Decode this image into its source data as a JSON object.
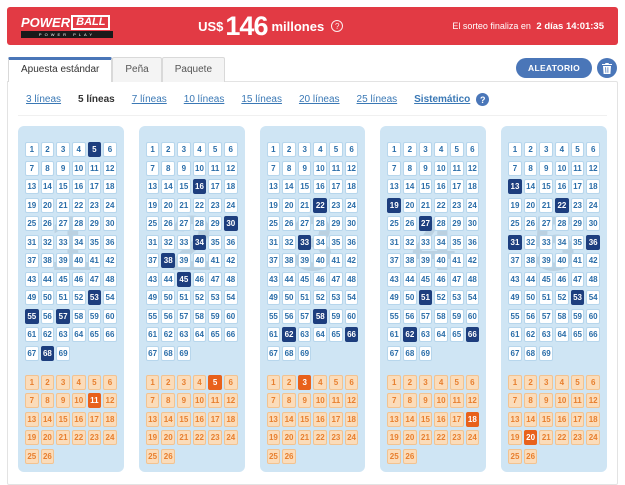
{
  "header": {
    "logo": {
      "power": "POWER",
      "ball": "BALL",
      "powerplay": "POWER PLAY"
    },
    "jackpot": {
      "currency": "US$",
      "amount": "146",
      "suffix": "millones",
      "help_icon": "question-circle-icon"
    },
    "countdown": {
      "label": "El sorteo finaliza en",
      "value": "2 días 14:01:35"
    }
  },
  "tabs": [
    {
      "label": "Apuesta estándar",
      "active": true
    },
    {
      "label": "Peña",
      "active": false
    },
    {
      "label": "Paquete",
      "active": false
    }
  ],
  "actions": {
    "random_label": "ALEATORIO",
    "clear_icon": "trash-icon"
  },
  "line_options": [
    {
      "label": "3 líneas",
      "active": false
    },
    {
      "label": "5 líneas",
      "active": true
    },
    {
      "label": "7 líneas",
      "active": false
    },
    {
      "label": "10 líneas",
      "active": false
    },
    {
      "label": "15 líneas",
      "active": false
    },
    {
      "label": "20 líneas",
      "active": false
    },
    {
      "label": "25 líneas",
      "active": false
    },
    {
      "label": "Sistemático",
      "active": false,
      "system": true,
      "help_icon": "question-circle-icon"
    }
  ],
  "board": {
    "main_count": 69,
    "main_columns": 6,
    "power_count": 26,
    "power_columns": 6
  },
  "tickets": [
    {
      "line": 1,
      "main_selected": [
        5,
        53,
        55,
        57,
        68
      ],
      "power_selected": [
        11
      ]
    },
    {
      "line": 2,
      "main_selected": [
        16,
        30,
        34,
        38,
        45
      ],
      "power_selected": [
        5
      ]
    },
    {
      "line": 3,
      "main_selected": [
        22,
        33,
        58,
        62,
        66
      ],
      "power_selected": [
        3
      ]
    },
    {
      "line": 4,
      "main_selected": [
        19,
        27,
        51,
        62,
        66
      ],
      "power_selected": [
        18
      ]
    },
    {
      "line": 5,
      "main_selected": [
        13,
        22,
        31,
        36,
        53
      ],
      "power_selected": [
        20
      ]
    }
  ],
  "colors": {
    "header_red": "#e23a44",
    "accent_blue": "#4a76b8",
    "link_blue": "#3a78b5",
    "selected_navy": "#1d3e7e",
    "powerball_orange": "#e8611b",
    "panel_blue": "#cfe5f4",
    "powerball_peach": "#fbdcba"
  }
}
